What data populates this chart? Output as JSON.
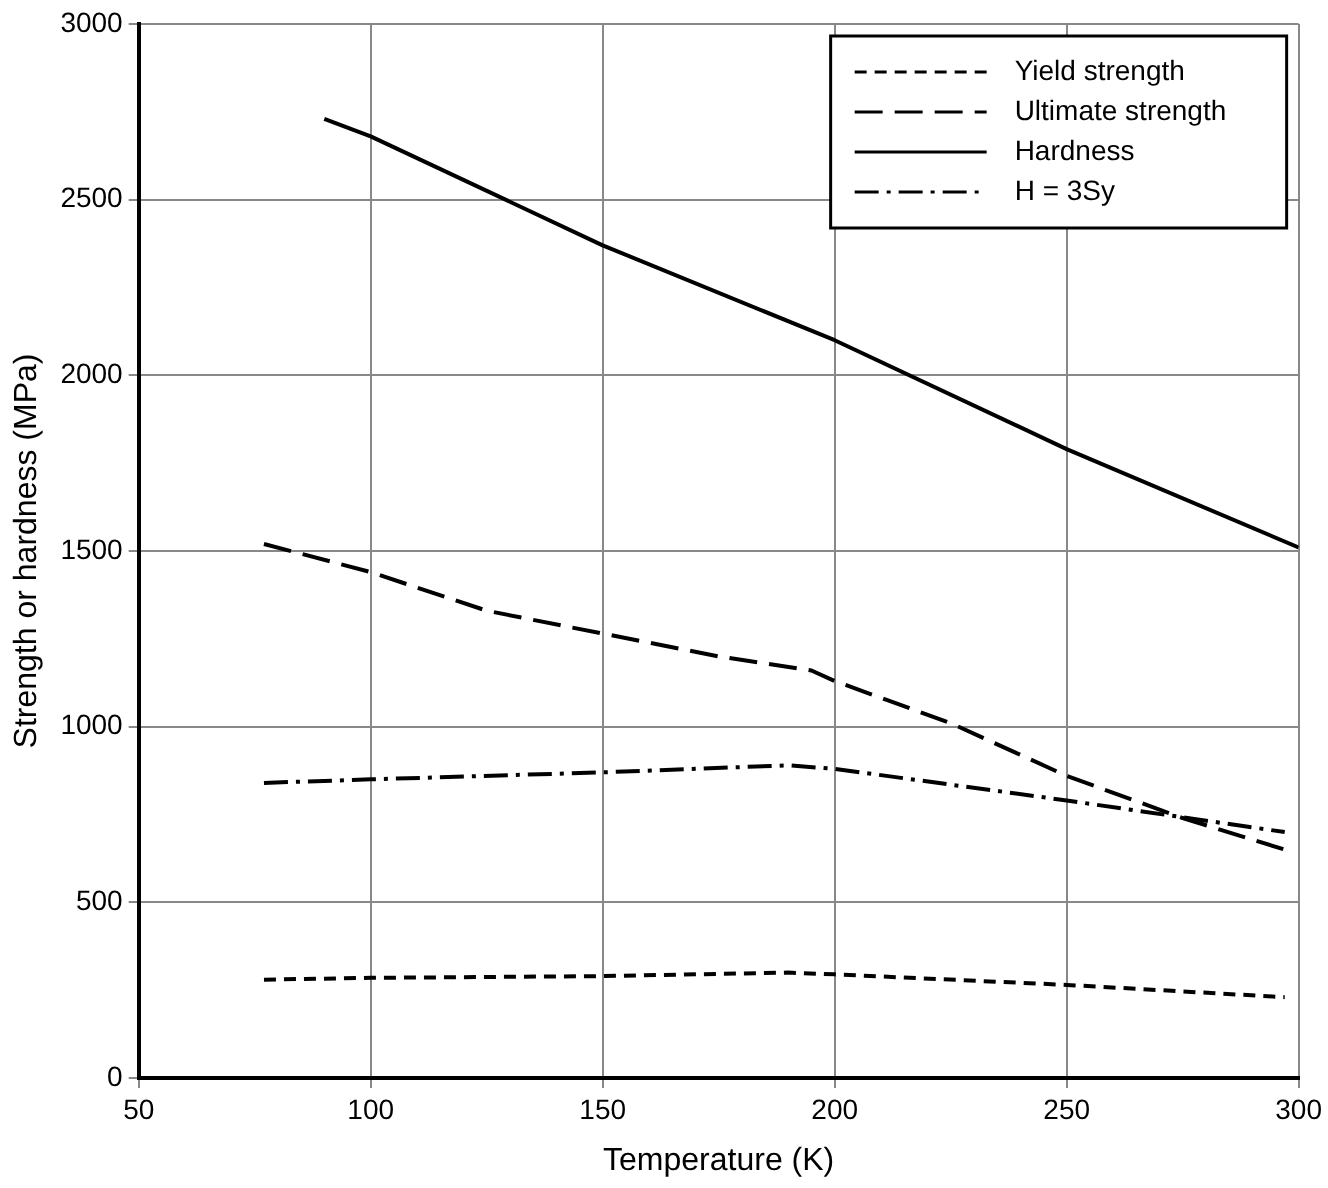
{
  "chart_data": {
    "type": "line",
    "xlabel": "Temperature (K)",
    "ylabel": "Strength or hardness (MPa)",
    "xlim": [
      50,
      300
    ],
    "xticks": [
      50,
      100,
      150,
      200,
      250,
      300
    ],
    "ylim": [
      0,
      3000
    ],
    "yticks": [
      0,
      500,
      1000,
      1500,
      2000,
      2500,
      3000
    ],
    "grid": true,
    "legend": "top right",
    "marker": "none",
    "series": [
      {
        "name": "Yield strength",
        "color": "#000000",
        "line_style": "dashed",
        "x": [
          77,
          100,
          150,
          190,
          200,
          250,
          297
        ],
        "values": [
          280,
          285,
          290,
          300,
          295,
          265,
          230
        ]
      },
      {
        "name": "Ultimate strength",
        "color": "#000000",
        "line_style": "longdash",
        "x": [
          77,
          100,
          125,
          150,
          175,
          195,
          200,
          225,
          250,
          275,
          297
        ],
        "values": [
          1520,
          1440,
          1330,
          1265,
          1200,
          1160,
          1130,
          1010,
          860,
          740,
          650
        ]
      },
      {
        "name": "Hardness",
        "color": "#000000",
        "line_style": "solid",
        "x": [
          90,
          100,
          150,
          200,
          250,
          300
        ],
        "values": [
          2730,
          2680,
          2370,
          2100,
          1790,
          1510
        ]
      },
      {
        "name": "H = 3Sy",
        "color": "#000000",
        "line_style": "dashdot",
        "x": [
          77,
          100,
          150,
          190,
          200,
          250,
          297
        ],
        "values": [
          840,
          850,
          870,
          890,
          880,
          790,
          700
        ]
      }
    ]
  }
}
